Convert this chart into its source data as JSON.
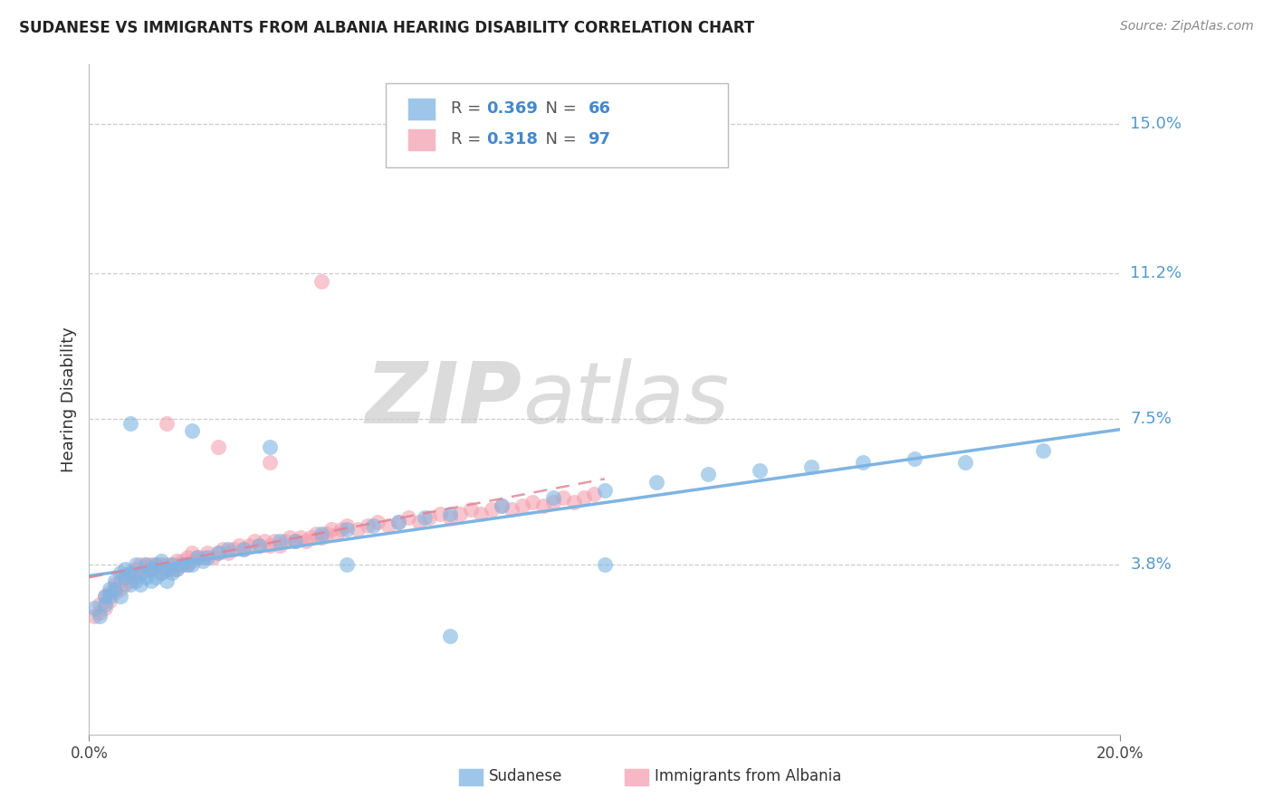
{
  "title": "SUDANESE VS IMMIGRANTS FROM ALBANIA HEARING DISABILITY CORRELATION CHART",
  "source": "Source: ZipAtlas.com",
  "ylabel": "Hearing Disability",
  "ylabel_tick_values": [
    0.038,
    0.075,
    0.112,
    0.15
  ],
  "ylabel_tick_labels": [
    "3.8%",
    "7.5%",
    "11.2%",
    "15.0%"
  ],
  "xlim": [
    0.0,
    0.2
  ],
  "ylim": [
    -0.005,
    0.165
  ],
  "watermark_zip": "ZIP",
  "watermark_atlas": "atlas",
  "legend1_R": "0.369",
  "legend1_N": "66",
  "legend2_R": "0.318",
  "legend2_N": "97",
  "series1_color": "#7EB4E2",
  "series2_color": "#F4A0B0",
  "series1_label": "Sudanese",
  "series2_label": "Immigrants from Albania",
  "grid_color": "#CCCCCC",
  "background_color": "#FFFFFF",
  "sudanese_x": [
    0.001,
    0.002,
    0.003,
    0.003,
    0.004,
    0.004,
    0.005,
    0.005,
    0.006,
    0.006,
    0.007,
    0.007,
    0.008,
    0.008,
    0.009,
    0.009,
    0.01,
    0.01,
    0.011,
    0.011,
    0.012,
    0.012,
    0.013,
    0.013,
    0.014,
    0.014,
    0.015,
    0.015,
    0.016,
    0.016,
    0.017,
    0.018,
    0.019,
    0.02,
    0.021,
    0.022,
    0.023,
    0.025,
    0.027,
    0.03,
    0.033,
    0.037,
    0.04,
    0.045,
    0.05,
    0.055,
    0.06,
    0.065,
    0.07,
    0.08,
    0.09,
    0.1,
    0.11,
    0.12,
    0.13,
    0.14,
    0.15,
    0.16,
    0.17,
    0.185,
    0.008,
    0.02,
    0.035,
    0.05,
    0.07,
    0.1
  ],
  "sudanese_y": [
    0.027,
    0.025,
    0.03,
    0.028,
    0.03,
    0.032,
    0.032,
    0.034,
    0.03,
    0.036,
    0.035,
    0.037,
    0.033,
    0.036,
    0.034,
    0.038,
    0.033,
    0.036,
    0.035,
    0.038,
    0.034,
    0.037,
    0.035,
    0.038,
    0.036,
    0.039,
    0.034,
    0.037,
    0.036,
    0.038,
    0.037,
    0.038,
    0.038,
    0.038,
    0.04,
    0.039,
    0.04,
    0.041,
    0.042,
    0.042,
    0.043,
    0.044,
    0.044,
    0.046,
    0.047,
    0.048,
    0.049,
    0.05,
    0.051,
    0.053,
    0.055,
    0.057,
    0.059,
    0.061,
    0.062,
    0.063,
    0.064,
    0.065,
    0.064,
    0.067,
    0.074,
    0.072,
    0.068,
    0.038,
    0.02,
    0.038
  ],
  "albania_x": [
    0.001,
    0.002,
    0.002,
    0.003,
    0.003,
    0.004,
    0.004,
    0.005,
    0.005,
    0.006,
    0.006,
    0.007,
    0.007,
    0.008,
    0.008,
    0.009,
    0.009,
    0.01,
    0.01,
    0.011,
    0.011,
    0.012,
    0.012,
    0.013,
    0.013,
    0.014,
    0.014,
    0.015,
    0.015,
    0.016,
    0.016,
    0.017,
    0.017,
    0.018,
    0.018,
    0.019,
    0.019,
    0.02,
    0.02,
    0.021,
    0.022,
    0.023,
    0.024,
    0.025,
    0.026,
    0.027,
    0.028,
    0.029,
    0.03,
    0.031,
    0.032,
    0.033,
    0.034,
    0.035,
    0.036,
    0.037,
    0.038,
    0.039,
    0.04,
    0.041,
    0.042,
    0.043,
    0.044,
    0.045,
    0.046,
    0.047,
    0.048,
    0.049,
    0.05,
    0.052,
    0.054,
    0.056,
    0.058,
    0.06,
    0.062,
    0.064,
    0.066,
    0.068,
    0.07,
    0.072,
    0.074,
    0.076,
    0.078,
    0.08,
    0.082,
    0.084,
    0.086,
    0.088,
    0.09,
    0.092,
    0.094,
    0.096,
    0.098,
    0.015,
    0.025,
    0.035,
    0.045
  ],
  "albania_y": [
    0.025,
    0.026,
    0.028,
    0.027,
    0.03,
    0.029,
    0.031,
    0.031,
    0.033,
    0.032,
    0.034,
    0.033,
    0.035,
    0.034,
    0.036,
    0.035,
    0.037,
    0.036,
    0.038,
    0.037,
    0.038,
    0.037,
    0.038,
    0.037,
    0.038,
    0.038,
    0.036,
    0.037,
    0.038,
    0.037,
    0.038,
    0.037,
    0.039,
    0.038,
    0.039,
    0.038,
    0.04,
    0.039,
    0.041,
    0.04,
    0.04,
    0.041,
    0.04,
    0.041,
    0.042,
    0.041,
    0.042,
    0.043,
    0.042,
    0.043,
    0.044,
    0.043,
    0.044,
    0.043,
    0.044,
    0.043,
    0.044,
    0.045,
    0.044,
    0.045,
    0.044,
    0.045,
    0.046,
    0.045,
    0.046,
    0.047,
    0.046,
    0.047,
    0.048,
    0.047,
    0.048,
    0.049,
    0.048,
    0.049,
    0.05,
    0.049,
    0.05,
    0.051,
    0.05,
    0.051,
    0.052,
    0.051,
    0.052,
    0.053,
    0.052,
    0.053,
    0.054,
    0.053,
    0.054,
    0.055,
    0.054,
    0.055,
    0.056,
    0.074,
    0.068,
    0.064,
    0.11
  ]
}
